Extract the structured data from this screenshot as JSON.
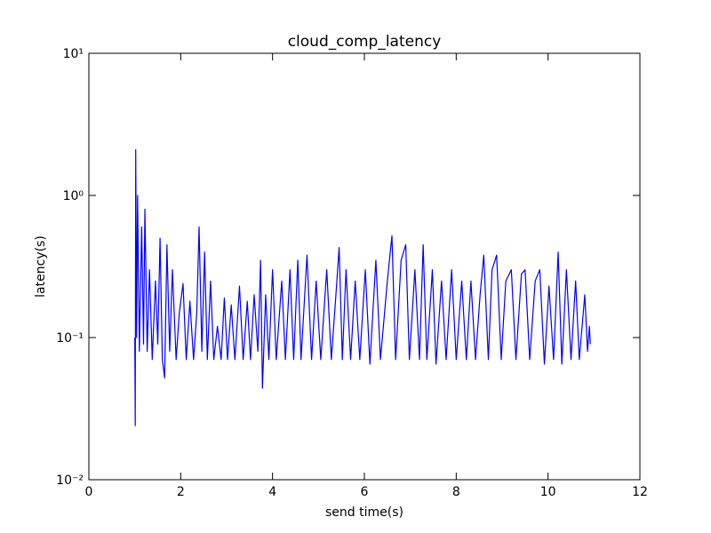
{
  "chart_data": {
    "type": "line",
    "title": "cloud_comp_latency",
    "x_label": "send time(s)",
    "y_label": "latency(s)",
    "log_y": true,
    "xlim": [
      0,
      12
    ],
    "xticks": [
      0,
      2,
      4,
      6,
      8,
      10,
      12
    ],
    "ylim": [
      0.01,
      10
    ],
    "yticks": [
      {
        "value": 0.01,
        "label": "10⁻²"
      },
      {
        "value": 0.1,
        "label": "10⁻¹"
      },
      {
        "value": 1,
        "label": "10⁰"
      },
      {
        "value": 10,
        "label": "10¹"
      }
    ],
    "series": [
      {
        "color": "#0000ff",
        "x": [
          1.0,
          1.01,
          1.02,
          1.04,
          1.06,
          1.1,
          1.15,
          1.19,
          1.22,
          1.27,
          1.32,
          1.38,
          1.45,
          1.5,
          1.55,
          1.6,
          1.65,
          1.7,
          1.76,
          1.82,
          1.9,
          1.97,
          2.05,
          2.12,
          2.2,
          2.28,
          2.35,
          2.4,
          2.46,
          2.52,
          2.58,
          2.65,
          2.72,
          2.8,
          2.88,
          2.95,
          3.02,
          3.1,
          3.18,
          3.28,
          3.36,
          3.45,
          3.52,
          3.6,
          3.68,
          3.74,
          3.78,
          3.85,
          3.92,
          4.0,
          4.08,
          4.2,
          4.28,
          4.38,
          4.46,
          4.55,
          4.62,
          4.75,
          4.85,
          4.95,
          5.05,
          5.18,
          5.28,
          5.38,
          5.45,
          5.52,
          5.6,
          5.7,
          5.8,
          5.9,
          6.02,
          6.12,
          6.25,
          6.35,
          6.5,
          6.6,
          6.68,
          6.8,
          6.9,
          6.98,
          7.1,
          7.2,
          7.28,
          7.36,
          7.48,
          7.56,
          7.68,
          7.78,
          7.9,
          8.0,
          8.12,
          8.22,
          8.32,
          8.42,
          8.52,
          8.6,
          8.7,
          8.78,
          8.88,
          8.98,
          9.08,
          9.2,
          9.3,
          9.42,
          9.5,
          9.6,
          9.72,
          9.82,
          9.92,
          10.02,
          10.12,
          10.22,
          10.3,
          10.4,
          10.5,
          10.6,
          10.68,
          10.8,
          10.86,
          10.9,
          10.92
        ],
        "values": [
          0.1,
          0.024,
          2.1,
          0.1,
          1.0,
          0.08,
          0.6,
          0.09,
          0.8,
          0.08,
          0.3,
          0.07,
          0.25,
          0.09,
          0.5,
          0.07,
          0.052,
          0.45,
          0.08,
          0.3,
          0.07,
          0.15,
          0.24,
          0.07,
          0.18,
          0.07,
          0.15,
          0.6,
          0.08,
          0.4,
          0.07,
          0.25,
          0.07,
          0.12,
          0.07,
          0.19,
          0.07,
          0.17,
          0.07,
          0.23,
          0.07,
          0.18,
          0.07,
          0.2,
          0.08,
          0.35,
          0.044,
          0.2,
          0.07,
          0.3,
          0.07,
          0.25,
          0.07,
          0.3,
          0.07,
          0.35,
          0.07,
          0.38,
          0.07,
          0.25,
          0.07,
          0.3,
          0.07,
          0.2,
          0.43,
          0.07,
          0.3,
          0.07,
          0.25,
          0.07,
          0.3,
          0.065,
          0.35,
          0.07,
          0.25,
          0.52,
          0.07,
          0.35,
          0.45,
          0.07,
          0.3,
          0.07,
          0.45,
          0.07,
          0.3,
          0.065,
          0.25,
          0.07,
          0.3,
          0.07,
          0.25,
          0.07,
          0.25,
          0.07,
          0.2,
          0.38,
          0.07,
          0.3,
          0.38,
          0.07,
          0.25,
          0.3,
          0.07,
          0.28,
          0.3,
          0.07,
          0.25,
          0.3,
          0.065,
          0.23,
          0.07,
          0.4,
          0.065,
          0.3,
          0.07,
          0.25,
          0.07,
          0.2,
          0.08,
          0.12,
          0.09
        ]
      }
    ]
  }
}
